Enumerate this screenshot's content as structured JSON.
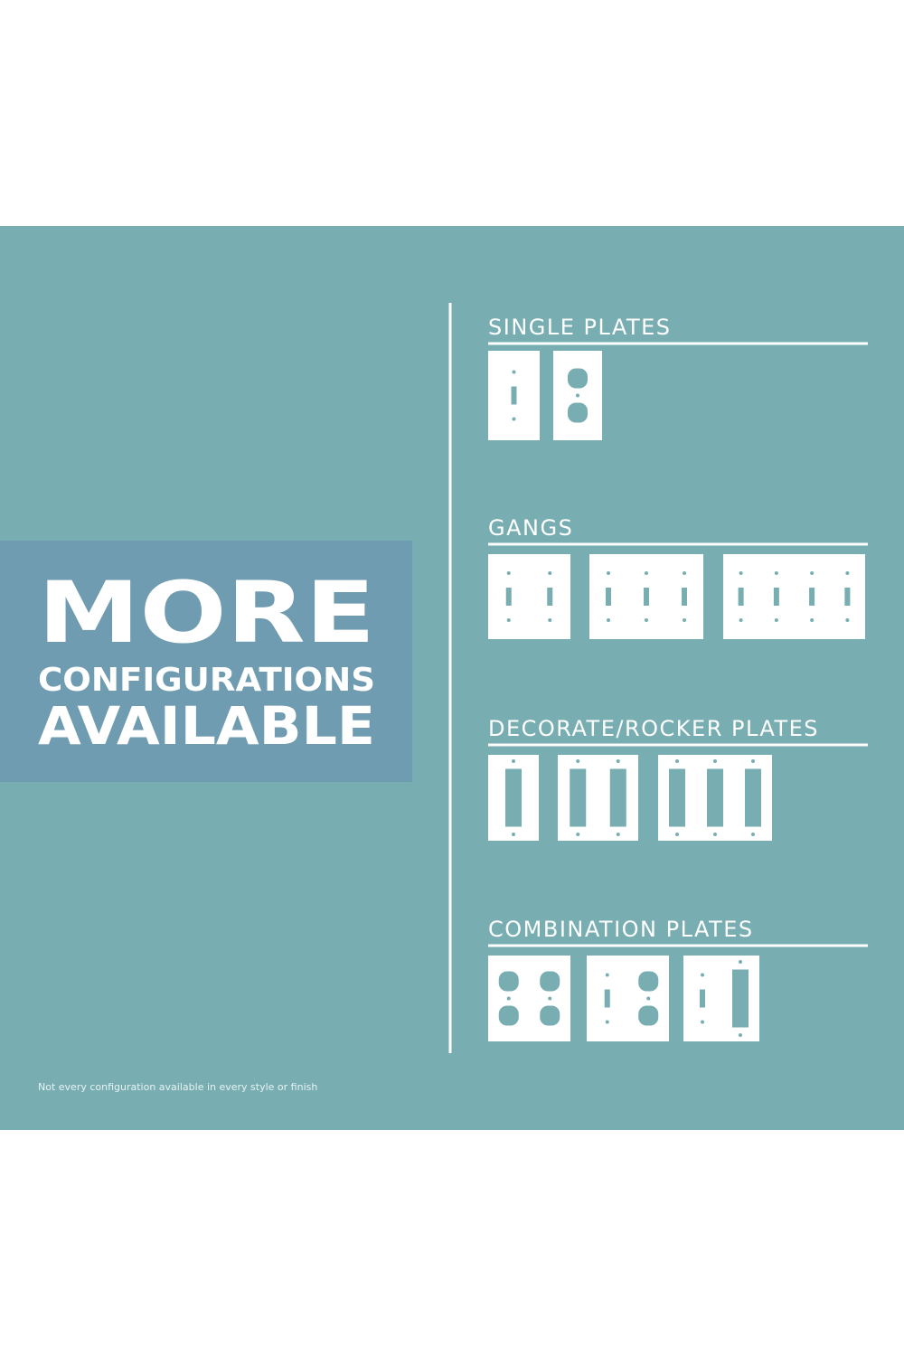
{
  "promo": {
    "line1": "MORE",
    "line2": "CONFIGURATIONS",
    "line3": "AVAILABLE"
  },
  "sections": [
    {
      "title": "SINGLE PLATES"
    },
    {
      "title": "GANGS"
    },
    {
      "title": "DECORATE/ROCKER PLATES"
    },
    {
      "title": "COMBINATION PLATES"
    }
  ],
  "footnote": "Not every configuration available in every style or finish"
}
